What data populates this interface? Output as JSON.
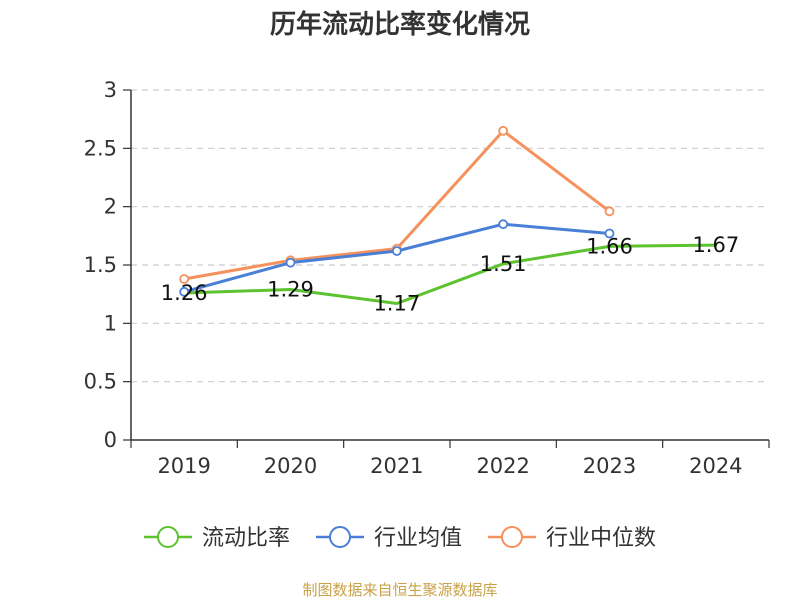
{
  "chart_data": {
    "type": "line",
    "title": "历年流动比率变化情况",
    "categories": [
      "2019",
      "2020",
      "2021",
      "2022",
      "2023",
      "2024"
    ],
    "ylim": [
      0,
      3
    ],
    "yticks": [
      "0",
      "0.5",
      "1",
      "1.5",
      "2",
      "2.5",
      "3"
    ],
    "grid": true,
    "legend_position": "bottom",
    "series": [
      {
        "name": "流动比率",
        "color": "#5cc32f",
        "values": [
          1.26,
          1.29,
          1.17,
          1.51,
          1.66,
          1.67
        ],
        "labels": [
          "1.26",
          "1.29",
          "1.17",
          "1.51",
          "1.66",
          "1.67"
        ],
        "show_labels": true,
        "show_markers": false
      },
      {
        "name": "行业均值",
        "color": "#4a7fd6",
        "values": [
          1.27,
          1.52,
          1.62,
          1.85,
          1.77,
          null
        ],
        "show_labels": false,
        "show_markers": true
      },
      {
        "name": "行业中位数",
        "color": "#f5915c",
        "values": [
          1.38,
          1.54,
          1.64,
          2.65,
          1.96,
          null
        ],
        "show_labels": false,
        "show_markers": true
      }
    ]
  },
  "footer": {
    "source": "制图数据来自恒生聚源数据库"
  }
}
